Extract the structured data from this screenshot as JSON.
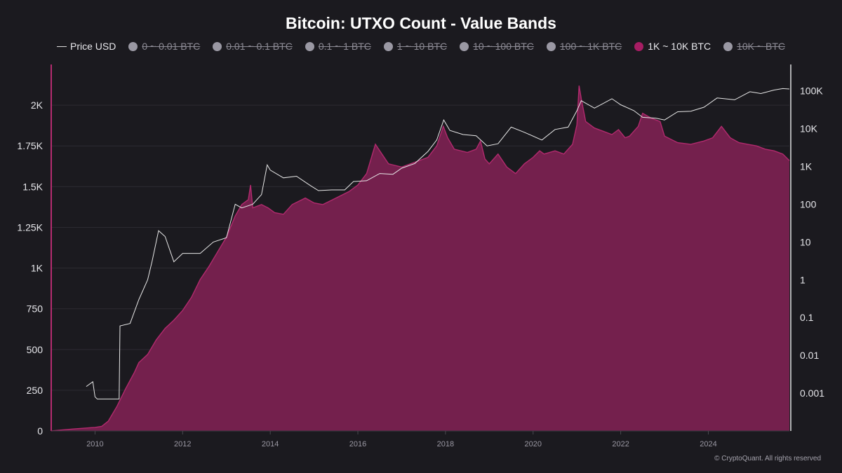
{
  "chart_data": {
    "type": "area",
    "title": "Bitcoin: UTXO Count - Value Bands",
    "watermark": "CryptoQuant",
    "copyright": "© CryptoQuant. All rights reserved",
    "legend": [
      {
        "label": "Price USD",
        "kind": "line",
        "active": true,
        "color": "#dddddd"
      },
      {
        "label": "0 ~ 0.01 BTC",
        "kind": "dot",
        "active": false,
        "color": "#9a98a3"
      },
      {
        "label": "0.01 ~ 0.1 BTC",
        "kind": "dot",
        "active": false,
        "color": "#9a98a3"
      },
      {
        "label": "0.1 ~ 1 BTC",
        "kind": "dot",
        "active": false,
        "color": "#9a98a3"
      },
      {
        "label": "1 ~ 10 BTC",
        "kind": "dot",
        "active": false,
        "color": "#9a98a3"
      },
      {
        "label": "10 ~ 100 BTC",
        "kind": "dot",
        "active": false,
        "color": "#9a98a3"
      },
      {
        "label": "100 ~ 1K BTC",
        "kind": "dot",
        "active": false,
        "color": "#9a98a3"
      },
      {
        "label": "1K ~ 10K BTC",
        "kind": "dot",
        "active": true,
        "color": "#a61d63"
      },
      {
        "label": "10K ~ BTC",
        "kind": "dot",
        "active": false,
        "color": "#9a98a3"
      }
    ],
    "x_range": [
      2009.0,
      2025.85
    ],
    "x_ticks": [
      2010,
      2012,
      2014,
      2016,
      2018,
      2020,
      2022,
      2024
    ],
    "y_left": {
      "range": [
        0,
        2250
      ],
      "ticks": [
        0,
        250,
        500,
        750,
        1000,
        1250,
        1500,
        1750,
        2000
      ],
      "tick_labels": [
        "0",
        "250",
        "500",
        "750",
        "1K",
        "1.25K",
        "1.5K",
        "1.75K",
        "2K"
      ]
    },
    "y_right": {
      "scale": "log",
      "range": [
        0.0001,
        500000
      ],
      "ticks": [
        0.001,
        0.01,
        0.1,
        1,
        10,
        100,
        1000,
        10000,
        100000
      ],
      "tick_labels": [
        "0.001",
        "0.01",
        "0.1",
        "1",
        "10",
        "100",
        "1K",
        "10K",
        "100K"
      ]
    },
    "colors": {
      "area_fill": "#74204d",
      "area_stroke": "#b22a6e",
      "price_line": "#e8e8e8",
      "left_axis": "#b52c70",
      "right_axis": "#e0e0e0"
    },
    "series": [
      {
        "name": "1K ~ 10K BTC",
        "axis": "left",
        "points": [
          [
            2009.0,
            0
          ],
          [
            2009.2,
            5
          ],
          [
            2009.5,
            12
          ],
          [
            2009.8,
            18
          ],
          [
            2010.0,
            22
          ],
          [
            2010.15,
            28
          ],
          [
            2010.3,
            60
          ],
          [
            2010.5,
            150
          ],
          [
            2010.7,
            260
          ],
          [
            2010.9,
            360
          ],
          [
            2011.0,
            420
          ],
          [
            2011.2,
            470
          ],
          [
            2011.4,
            560
          ],
          [
            2011.6,
            630
          ],
          [
            2011.8,
            680
          ],
          [
            2012.0,
            740
          ],
          [
            2012.2,
            820
          ],
          [
            2012.4,
            930
          ],
          [
            2012.6,
            1010
          ],
          [
            2012.8,
            1100
          ],
          [
            2013.0,
            1190
          ],
          [
            2013.2,
            1320
          ],
          [
            2013.35,
            1390
          ],
          [
            2013.5,
            1420
          ],
          [
            2013.55,
            1510
          ],
          [
            2013.6,
            1370
          ],
          [
            2013.8,
            1390
          ],
          [
            2013.95,
            1370
          ],
          [
            2014.1,
            1340
          ],
          [
            2014.3,
            1330
          ],
          [
            2014.5,
            1390
          ],
          [
            2014.8,
            1430
          ],
          [
            2015.0,
            1400
          ],
          [
            2015.2,
            1390
          ],
          [
            2015.5,
            1430
          ],
          [
            2015.8,
            1470
          ],
          [
            2016.0,
            1510
          ],
          [
            2016.2,
            1580
          ],
          [
            2016.4,
            1760
          ],
          [
            2016.5,
            1720
          ],
          [
            2016.7,
            1640
          ],
          [
            2017.0,
            1620
          ],
          [
            2017.3,
            1650
          ],
          [
            2017.6,
            1680
          ],
          [
            2017.8,
            1750
          ],
          [
            2017.95,
            1870
          ],
          [
            2018.05,
            1800
          ],
          [
            2018.2,
            1730
          ],
          [
            2018.5,
            1710
          ],
          [
            2018.7,
            1730
          ],
          [
            2018.8,
            1780
          ],
          [
            2018.9,
            1670
          ],
          [
            2019.0,
            1640
          ],
          [
            2019.2,
            1700
          ],
          [
            2019.4,
            1620
          ],
          [
            2019.6,
            1580
          ],
          [
            2019.8,
            1640
          ],
          [
            2020.0,
            1680
          ],
          [
            2020.15,
            1720
          ],
          [
            2020.25,
            1700
          ],
          [
            2020.5,
            1720
          ],
          [
            2020.7,
            1700
          ],
          [
            2020.9,
            1760
          ],
          [
            2021.0,
            1880
          ],
          [
            2021.05,
            2120
          ],
          [
            2021.1,
            2040
          ],
          [
            2021.2,
            1900
          ],
          [
            2021.4,
            1860
          ],
          [
            2021.6,
            1840
          ],
          [
            2021.8,
            1820
          ],
          [
            2021.95,
            1850
          ],
          [
            2022.1,
            1800
          ],
          [
            2022.2,
            1810
          ],
          [
            2022.4,
            1870
          ],
          [
            2022.5,
            1950
          ],
          [
            2022.7,
            1920
          ],
          [
            2022.9,
            1900
          ],
          [
            2023.0,
            1810
          ],
          [
            2023.3,
            1770
          ],
          [
            2023.6,
            1760
          ],
          [
            2023.9,
            1780
          ],
          [
            2024.1,
            1800
          ],
          [
            2024.3,
            1870
          ],
          [
            2024.5,
            1800
          ],
          [
            2024.7,
            1770
          ],
          [
            2024.9,
            1760
          ],
          [
            2025.1,
            1750
          ],
          [
            2025.3,
            1730
          ],
          [
            2025.5,
            1720
          ],
          [
            2025.7,
            1700
          ],
          [
            2025.85,
            1660
          ]
        ]
      },
      {
        "name": "Price USD",
        "axis": "right",
        "points": [
          [
            2009.8,
            0.0015
          ],
          [
            2009.95,
            0.002
          ],
          [
            2010.0,
            0.0008
          ],
          [
            2010.05,
            0.0007
          ],
          [
            2010.55,
            0.0007
          ],
          [
            2010.57,
            0.06
          ],
          [
            2010.8,
            0.07
          ],
          [
            2011.0,
            0.3
          ],
          [
            2011.2,
            1.0
          ],
          [
            2011.3,
            3
          ],
          [
            2011.45,
            20
          ],
          [
            2011.6,
            14
          ],
          [
            2011.8,
            3
          ],
          [
            2012.0,
            5
          ],
          [
            2012.4,
            5
          ],
          [
            2012.7,
            10
          ],
          [
            2013.0,
            13
          ],
          [
            2013.2,
            100
          ],
          [
            2013.35,
            80
          ],
          [
            2013.6,
            100
          ],
          [
            2013.8,
            180
          ],
          [
            2013.93,
            1100
          ],
          [
            2014.0,
            800
          ],
          [
            2014.3,
            500
          ],
          [
            2014.6,
            550
          ],
          [
            2014.9,
            320
          ],
          [
            2015.1,
            230
          ],
          [
            2015.4,
            240
          ],
          [
            2015.7,
            240
          ],
          [
            2015.9,
            400
          ],
          [
            2016.2,
            420
          ],
          [
            2016.5,
            650
          ],
          [
            2016.8,
            620
          ],
          [
            2017.0,
            900
          ],
          [
            2017.3,
            1200
          ],
          [
            2017.6,
            2500
          ],
          [
            2017.8,
            5000
          ],
          [
            2017.96,
            17000
          ],
          [
            2018.1,
            9000
          ],
          [
            2018.4,
            7000
          ],
          [
            2018.7,
            6500
          ],
          [
            2018.95,
            3500
          ],
          [
            2019.2,
            4000
          ],
          [
            2019.5,
            11000
          ],
          [
            2019.8,
            8000
          ],
          [
            2020.2,
            5000
          ],
          [
            2020.5,
            9500
          ],
          [
            2020.8,
            11000
          ],
          [
            2021.0,
            30000
          ],
          [
            2021.1,
            55000
          ],
          [
            2021.4,
            35000
          ],
          [
            2021.8,
            62000
          ],
          [
            2022.0,
            43000
          ],
          [
            2022.3,
            30000
          ],
          [
            2022.5,
            20000
          ],
          [
            2022.8,
            19000
          ],
          [
            2023.0,
            17000
          ],
          [
            2023.3,
            28000
          ],
          [
            2023.6,
            29000
          ],
          [
            2023.9,
            37000
          ],
          [
            2024.2,
            65000
          ],
          [
            2024.6,
            58000
          ],
          [
            2024.95,
            95000
          ],
          [
            2025.2,
            85000
          ],
          [
            2025.5,
            105000
          ],
          [
            2025.7,
            115000
          ],
          [
            2025.85,
            112000
          ]
        ]
      }
    ]
  }
}
